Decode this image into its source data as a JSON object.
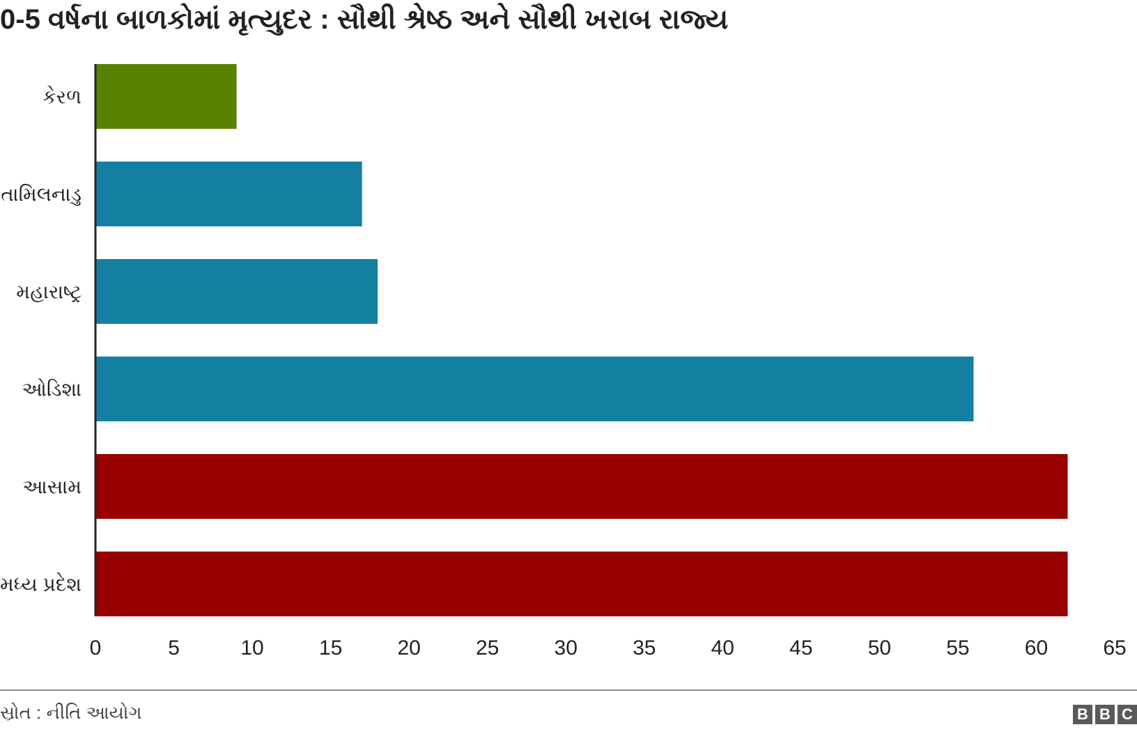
{
  "title": "0-5 વર્ષના બાળકોમાં મૃત્યુદર : સૌથી શ્રેષ્ઠ અને સૌથી ખરાબ રાજ્ય",
  "source": "સ્રોત : નીતિ આયોગ",
  "logo": {
    "letters": [
      "B",
      "B",
      "C"
    ]
  },
  "chart_data": {
    "type": "bar",
    "orientation": "horizontal",
    "categories": [
      "કેરળ",
      "તામિલનાડુ",
      "મહારાષ્ટ્ર",
      "ઓડિશા",
      "આસામ",
      "મધ્ય પ્રદેશ"
    ],
    "values": [
      9,
      17,
      18,
      56,
      62,
      62
    ],
    "colors": [
      "#588300",
      "#1380a1",
      "#1380a1",
      "#1380a1",
      "#990000",
      "#990000"
    ],
    "xlim": [
      0,
      65
    ],
    "x_ticks": [
      "0",
      "5",
      "10",
      "15",
      "20",
      "25",
      "30",
      "35",
      "40",
      "45",
      "50",
      "55",
      "60",
      "65"
    ],
    "grid": false,
    "legend": "none"
  }
}
